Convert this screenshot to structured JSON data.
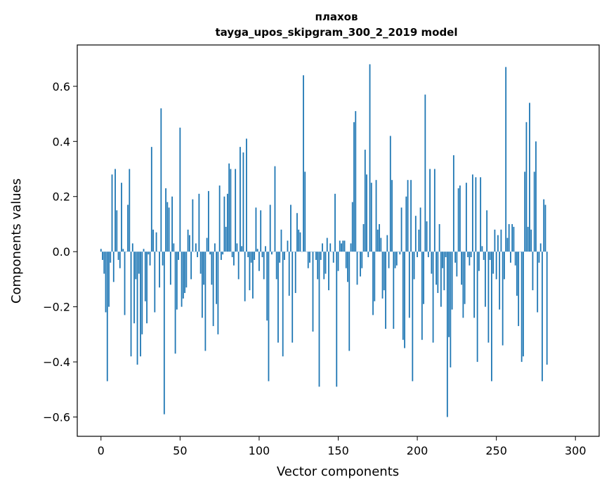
{
  "chart_data": {
    "type": "bar",
    "title_lines": [
      "плахов",
      "tayga_upos_skipgram_300_2_2019 model"
    ],
    "xlabel": "Vector components",
    "ylabel": "Components values",
    "xlim": [
      -15,
      315
    ],
    "ylim": [
      -0.67,
      0.75
    ],
    "xticks": [
      0,
      50,
      100,
      150,
      200,
      250,
      300
    ],
    "yticks": [
      -0.6,
      -0.4,
      -0.2,
      0.0,
      0.2,
      0.4,
      0.6
    ],
    "ytick_labels": [
      "−0.6",
      "−0.4",
      "−0.2",
      "0.0",
      "0.2",
      "0.4",
      "0.6"
    ],
    "grid": false,
    "bar_color": "#1f77b4",
    "values": [
      0.01,
      -0.03,
      -0.08,
      -0.22,
      -0.47,
      -0.2,
      -0.04,
      0.28,
      -0.11,
      0.3,
      0.15,
      -0.03,
      -0.06,
      0.25,
      0.01,
      -0.23,
      0.0,
      0.17,
      0.3,
      -0.38,
      0.03,
      -0.26,
      -0.1,
      -0.41,
      -0.08,
      -0.38,
      -0.3,
      0.01,
      -0.18,
      -0.26,
      -0.01,
      -0.05,
      0.38,
      0.08,
      -0.22,
      0.07,
      0.0,
      -0.13,
      0.52,
      -0.05,
      -0.59,
      0.23,
      0.18,
      0.16,
      -0.12,
      0.2,
      0.03,
      -0.37,
      -0.21,
      -0.03,
      0.45,
      -0.2,
      -0.17,
      -0.15,
      -0.13,
      0.08,
      0.06,
      -0.1,
      0.19,
      0.0,
      0.03,
      -0.02,
      0.21,
      -0.08,
      -0.24,
      -0.12,
      -0.36,
      0.05,
      0.22,
      -0.01,
      -0.12,
      -0.27,
      0.03,
      -0.19,
      -0.3,
      0.24,
      -0.03,
      -0.01,
      0.2,
      0.09,
      0.21,
      0.32,
      0.3,
      -0.02,
      -0.05,
      0.3,
      0.03,
      -0.1,
      0.38,
      0.02,
      0.36,
      -0.18,
      0.41,
      -0.02,
      -0.14,
      -0.04,
      -0.17,
      -0.03,
      0.16,
      0.01,
      -0.07,
      0.15,
      -0.02,
      -0.1,
      0.02,
      -0.25,
      -0.47,
      0.17,
      -0.01,
      0.0,
      0.31,
      -0.1,
      -0.33,
      -0.04,
      0.08,
      -0.38,
      -0.03,
      0.0,
      0.04,
      -0.16,
      0.17,
      -0.33,
      0.0,
      -0.15,
      0.14,
      0.08,
      0.07,
      0.0,
      0.64,
      0.29,
      0.0,
      -0.06,
      -0.04,
      0.0,
      -0.29,
      0.0,
      -0.03,
      -0.1,
      -0.49,
      -0.03,
      0.03,
      -0.1,
      -0.08,
      0.05,
      -0.14,
      0.03,
      0.0,
      -0.04,
      0.21,
      -0.49,
      -0.07,
      0.04,
      0.03,
      0.04,
      0.04,
      -0.06,
      -0.11,
      -0.36,
      0.03,
      0.18,
      0.47,
      0.51,
      -0.12,
      0.0,
      -0.09,
      -0.06,
      0.1,
      0.37,
      0.28,
      -0.02,
      0.68,
      0.25,
      -0.23,
      -0.18,
      0.26,
      0.08,
      0.1,
      0.05,
      -0.17,
      -0.14,
      -0.28,
      0.06,
      -0.06,
      0.42,
      0.26,
      -0.28,
      -0.06,
      -0.05,
      0.0,
      -0.01,
      0.16,
      -0.32,
      -0.35,
      0.2,
      0.26,
      -0.24,
      0.26,
      -0.47,
      -0.1,
      0.13,
      -0.02,
      0.08,
      0.16,
      -0.32,
      -0.19,
      0.57,
      0.11,
      -0.02,
      0.3,
      -0.08,
      -0.33,
      0.3,
      -0.12,
      -0.15,
      0.1,
      -0.2,
      -0.06,
      -0.14,
      -0.02,
      -0.6,
      -0.31,
      -0.42,
      -0.21,
      0.35,
      -0.04,
      -0.09,
      0.23,
      0.24,
      -0.12,
      -0.24,
      -0.19,
      0.25,
      -0.02,
      -0.05,
      -0.02,
      0.28,
      -0.24,
      0.27,
      -0.4,
      -0.07,
      0.27,
      0.02,
      -0.03,
      -0.2,
      0.15,
      -0.33,
      -0.03,
      -0.47,
      -0.08,
      0.08,
      -0.1,
      0.06,
      -0.21,
      0.08,
      -0.34,
      -0.1,
      0.67,
      0.05,
      0.1,
      -0.04,
      0.1,
      0.09,
      -0.05,
      -0.16,
      -0.27,
      0.0,
      -0.4,
      -0.38,
      0.29,
      0.47,
      0.09,
      0.54,
      0.08,
      -0.14,
      0.29,
      0.4,
      -0.22,
      -0.04,
      0.03,
      -0.47,
      0.19,
      0.17,
      -0.41
    ]
  }
}
